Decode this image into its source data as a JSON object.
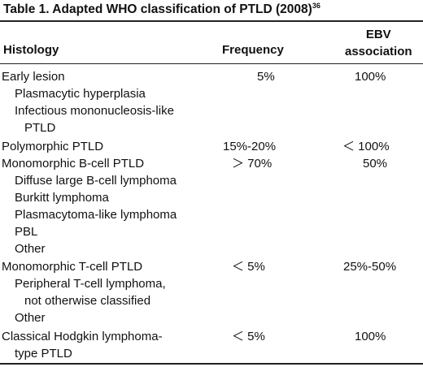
{
  "table": {
    "title": "Table 1. Adapted WHO classification of PTLD (2008)",
    "title_ref": "36",
    "headers": {
      "histology": "Histology",
      "frequency": "Frequency",
      "ebv_line1": "EBV",
      "ebv_line2": "association"
    },
    "rows": [
      {
        "label": "Early lesion",
        "frequency": "5%",
        "ebv": "100%"
      },
      {
        "label": "Plasmacytic hyperplasia",
        "frequency": "",
        "ebv": ""
      },
      {
        "label": "Infectious mononucleosis-like",
        "frequency": "",
        "ebv": ""
      },
      {
        "label": "PTLD",
        "frequency": "",
        "ebv": ""
      },
      {
        "label": "Polymorphic PTLD",
        "frequency": "15%-20%",
        "ebv": "＜ 100%"
      },
      {
        "label": "Monomorphic B-cell PTLD",
        "frequency": "＞ 70%",
        "ebv": "50%"
      },
      {
        "label": "Diffuse large B-cell lymphoma",
        "frequency": "",
        "ebv": ""
      },
      {
        "label": "Burkitt lymphoma",
        "frequency": "",
        "ebv": ""
      },
      {
        "label": "Plasmacytoma-like lymphoma",
        "frequency": "",
        "ebv": ""
      },
      {
        "label": "PBL",
        "frequency": "",
        "ebv": ""
      },
      {
        "label": "Other",
        "frequency": "",
        "ebv": ""
      },
      {
        "label": "Monomorphic T-cell PTLD",
        "frequency": "＜ 5%",
        "ebv": "25%-50%"
      },
      {
        "label": "Peripheral T-cell lymphoma,",
        "frequency": "",
        "ebv": ""
      },
      {
        "label": "not otherwise classified",
        "frequency": "",
        "ebv": ""
      },
      {
        "label": "Other",
        "frequency": "",
        "ebv": ""
      },
      {
        "label": "Classical Hodgkin lymphoma-",
        "frequency": "＜ 5%",
        "ebv": "100%"
      },
      {
        "label": "type PTLD",
        "frequency": "",
        "ebv": ""
      }
    ]
  }
}
